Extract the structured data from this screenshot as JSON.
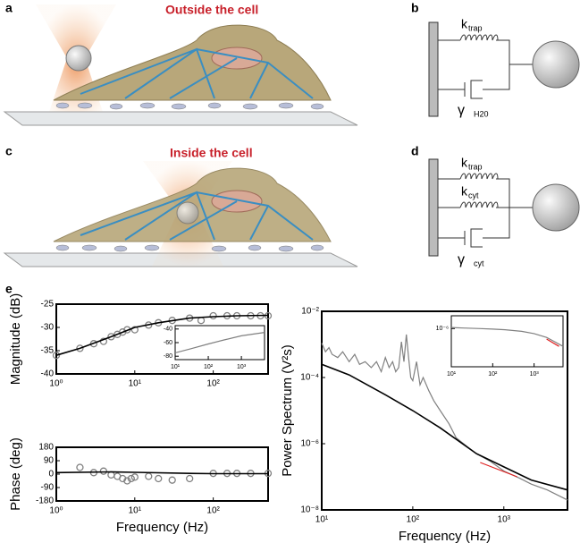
{
  "panels": {
    "a": {
      "label": "a",
      "title": "Outside the cell"
    },
    "b": {
      "label": "b",
      "k": "k",
      "k_sub": "trap",
      "gamma": "γ",
      "gamma_sub": "H20"
    },
    "c": {
      "label": "c",
      "title": "Inside the cell"
    },
    "d": {
      "label": "d",
      "k1": "k",
      "k1_sub": "trap",
      "k2": "k",
      "k2_sub": "cyt",
      "gamma": "γ",
      "gamma_sub": "cyt"
    },
    "e": {
      "label": "e"
    }
  },
  "chart_data": [
    {
      "type": "line",
      "ylabel": "Magnitude (dB)",
      "xscale": "log",
      "xlim": [
        1,
        500
      ],
      "xticks": [
        {
          "value": 1,
          "label": "10⁰"
        },
        {
          "value": 10,
          "label": "10¹"
        },
        {
          "value": 100,
          "label": "10²"
        }
      ],
      "ylim": [
        -40,
        -25
      ],
      "yticks": [
        -40,
        -35,
        -30,
        -25
      ],
      "series": [
        {
          "color": "#808080",
          "marker": "circle",
          "x": [
            1,
            2,
            3,
            4,
            5,
            6,
            7,
            8,
            10,
            15,
            20,
            30,
            50,
            70,
            100,
            150,
            200,
            300,
            400,
            500
          ],
          "values": [
            -36,
            -34.5,
            -33.5,
            -33,
            -32,
            -31.5,
            -31,
            -30.5,
            -30.5,
            -29.5,
            -29,
            -28.5,
            -28,
            -28.5,
            -27.5,
            -27.5,
            -27.5,
            -27.5,
            -27.5,
            -27.5
          ]
        },
        {
          "color": "#000000",
          "x": [
            1,
            2,
            5,
            10,
            20,
            50,
            100,
            200,
            500
          ],
          "values": [
            -36,
            -34.5,
            -32,
            -30,
            -29,
            -28,
            -27.7,
            -27.5,
            -27.4
          ]
        }
      ]
    },
    {
      "type": "line",
      "xscale": "log",
      "xlim": [
        10,
        5000
      ],
      "xticks": [
        {
          "value": 10,
          "label": "10¹"
        },
        {
          "value": 100,
          "label": "10²"
        },
        {
          "value": 1000,
          "label": "10³"
        }
      ],
      "ylim": [
        -85,
        -35
      ],
      "yticks": [
        -80,
        -60,
        -40
      ],
      "series": [
        {
          "color": "#808080",
          "x": [
            10,
            30,
            100,
            300,
            1000,
            5000
          ],
          "values": [
            -75,
            -69,
            -62,
            -56,
            -50,
            -45
          ]
        }
      ]
    },
    {
      "type": "line",
      "ylabel": "Phase (deg)",
      "xlabel": "Frequency (Hz)",
      "xscale": "log",
      "xlim": [
        1,
        500
      ],
      "xticks": [
        {
          "value": 1,
          "label": "10⁰"
        },
        {
          "value": 10,
          "label": "10¹"
        },
        {
          "value": 100,
          "label": "10²"
        }
      ],
      "ylim": [
        -180,
        180
      ],
      "yticks": [
        -180,
        -90,
        0,
        90,
        180
      ],
      "series": [
        {
          "color": "#808080",
          "marker": "circle",
          "x": [
            2,
            3,
            4,
            5,
            6,
            7,
            8,
            9,
            10,
            15,
            20,
            30,
            50,
            100,
            150,
            200,
            300,
            500
          ],
          "values": [
            45,
            10,
            20,
            -5,
            -15,
            -30,
            -45,
            -30,
            -20,
            -15,
            -30,
            -40,
            -30,
            5,
            5,
            5,
            5,
            5
          ]
        },
        {
          "color": "#000000",
          "x": [
            1,
            5,
            10,
            50,
            100,
            500
          ],
          "values": [
            10,
            15,
            12,
            5,
            3,
            3
          ]
        }
      ]
    },
    {
      "type": "line",
      "ylabel": "Power Spectrum (V²s)",
      "xlabel": "Frequency (Hz)",
      "xscale": "log",
      "yscale": "log",
      "xlim": [
        10,
        5000
      ],
      "xticks": [
        {
          "value": 10,
          "label": "10¹"
        },
        {
          "value": 100,
          "label": "10²"
        },
        {
          "value": 1000,
          "label": "10³"
        }
      ],
      "ylim": [
        1e-08,
        0.01
      ],
      "yticks": [
        {
          "value": 1e-08,
          "label": "10⁻⁸"
        },
        {
          "value": 1e-06,
          "label": "10⁻⁶"
        },
        {
          "value": 0.0001,
          "label": "10⁻⁴"
        },
        {
          "value": 0.01,
          "label": "10⁻²"
        }
      ],
      "series": [
        {
          "color": "#808080",
          "x": [
            10,
            11,
            12,
            13,
            15,
            17,
            20,
            23,
            26,
            30,
            35,
            40,
            45,
            50,
            55,
            60,
            65,
            70,
            75,
            80,
            85,
            90,
            95,
            100,
            110,
            120,
            130,
            150,
            170,
            200,
            250,
            300,
            400,
            500,
            700,
            1000,
            1500,
            2000,
            3000,
            5000
          ],
          "values": [
            0.0011,
            0.0006,
            0.0008,
            0.0005,
            0.0004,
            0.0006,
            0.0003,
            0.0005,
            0.00025,
            0.0003,
            0.0002,
            0.0003,
            0.00015,
            0.0004,
            0.0002,
            0.0003,
            0.00015,
            0.0002,
            0.0012,
            0.0003,
            0.002,
            0.0004,
            0.0001,
            8e-05,
            0.0003,
            6e-05,
            0.0001,
            4e-05,
            2e-05,
            1e-05,
            4e-06,
            1.5e-06,
            8e-07,
            5e-07,
            3e-07,
            1.5e-07,
            9e-08,
            6e-08,
            4e-08,
            2e-08
          ]
        },
        {
          "color": "#000000",
          "x": [
            10,
            20,
            50,
            100,
            200,
            500,
            1000,
            2000,
            5000
          ],
          "values": [
            0.00025,
            0.00012,
            3e-05,
            1e-05,
            3e-06,
            5e-07,
            2e-07,
            8e-08,
            4e-08
          ]
        },
        {
          "color": "#e02020",
          "x": [
            550,
            1400
          ],
          "values": [
            2.7e-07,
            1e-07
          ]
        }
      ]
    },
    {
      "type": "line",
      "xscale": "log",
      "yscale": "log",
      "xlim": [
        10,
        5000
      ],
      "xticks": [
        {
          "value": 10,
          "label": "10¹"
        },
        {
          "value": 100,
          "label": "10²"
        },
        {
          "value": 1000,
          "label": "10³"
        }
      ],
      "ylim": [
        1e-09,
        1e-05
      ],
      "yticks": [
        {
          "value": 1e-06,
          "label": "10⁻⁶"
        }
      ],
      "series": [
        {
          "color": "#808080",
          "x": [
            10,
            20,
            50,
            100,
            200,
            500,
            1000,
            2000,
            3000,
            5000
          ],
          "values": [
            1.2e-06,
            1.1e-06,
            1e-06,
            9e-07,
            8e-07,
            6e-07,
            4e-07,
            2e-07,
            1e-07,
            4e-08
          ]
        },
        {
          "color": "#e02020",
          "x": [
            2000,
            4000
          ],
          "values": [
            1.5e-07,
            4e-08
          ]
        }
      ]
    }
  ]
}
